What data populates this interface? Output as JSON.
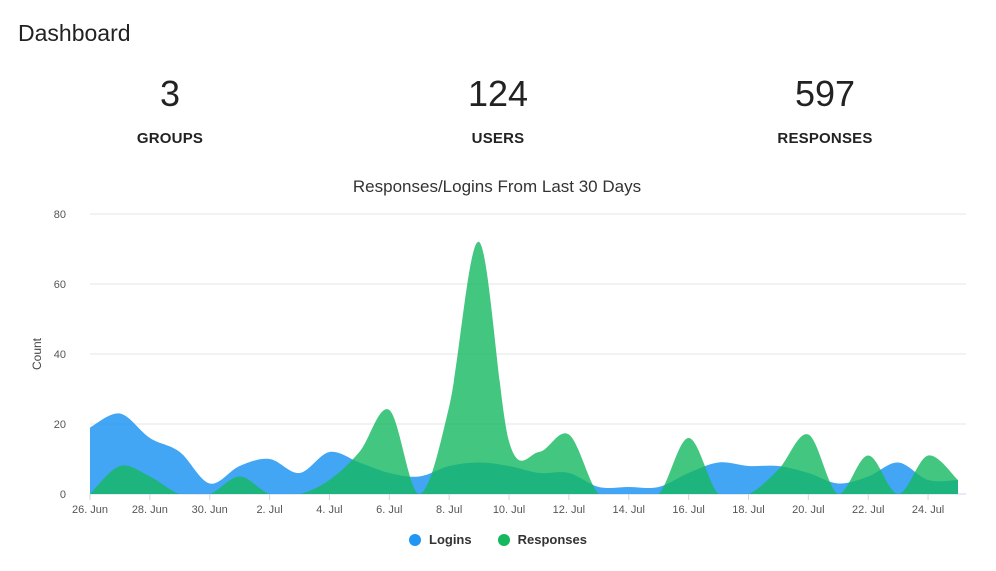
{
  "page": {
    "title": "Dashboard"
  },
  "stats": [
    {
      "value": "3",
      "label": "GROUPS"
    },
    {
      "value": "124",
      "label": "USERS"
    },
    {
      "value": "597",
      "label": "RESPONSES"
    }
  ],
  "colors": {
    "logins": "#2196F3",
    "responses": "#14B85F"
  },
  "chart_data": {
    "type": "area",
    "title": "Responses/Logins From Last 30 Days",
    "xlabel": "",
    "ylabel": "Count",
    "ylim": [
      0,
      80
    ],
    "yticks": [
      0,
      20,
      40,
      60,
      80
    ],
    "grid": true,
    "legend_position": "bottom-center",
    "categories": [
      "26. Jun",
      "27. Jun",
      "28. Jun",
      "29. Jun",
      "30. Jun",
      "1. Jul",
      "2. Jul",
      "3. Jul",
      "4. Jul",
      "5. Jul",
      "6. Jul",
      "7. Jul",
      "8. Jul",
      "9. Jul",
      "10. Jul",
      "11. Jul",
      "12. Jul",
      "13. Jul",
      "14. Jul",
      "15. Jul",
      "16. Jul",
      "17. Jul",
      "18. Jul",
      "19. Jul",
      "20. Jul",
      "21. Jul",
      "22. Jul",
      "23. Jul",
      "24. Jul",
      "25. Jul"
    ],
    "xtick_labels": [
      "26. Jun",
      "28. Jun",
      "30. Jun",
      "2. Jul",
      "4. Jul",
      "6. Jul",
      "8. Jul",
      "10. Jul",
      "12. Jul",
      "14. Jul",
      "16. Jul",
      "18. Jul",
      "20. Jul",
      "22. Jul",
      "24. Jul"
    ],
    "series": [
      {
        "name": "Logins",
        "values": [
          19,
          23,
          16,
          12,
          3,
          8,
          10,
          6,
          12,
          9,
          6,
          5,
          8,
          9,
          8,
          6,
          6,
          2,
          2,
          2,
          6,
          9,
          8,
          8,
          6,
          3,
          5,
          9,
          4,
          4
        ]
      },
      {
        "name": "Responses",
        "values": [
          0,
          8,
          5,
          0,
          0,
          5,
          0,
          0,
          4,
          12,
          24,
          0,
          25,
          72,
          15,
          12,
          17,
          0,
          0,
          0,
          16,
          0,
          0,
          7,
          17,
          0,
          11,
          0,
          11,
          4
        ]
      }
    ]
  }
}
